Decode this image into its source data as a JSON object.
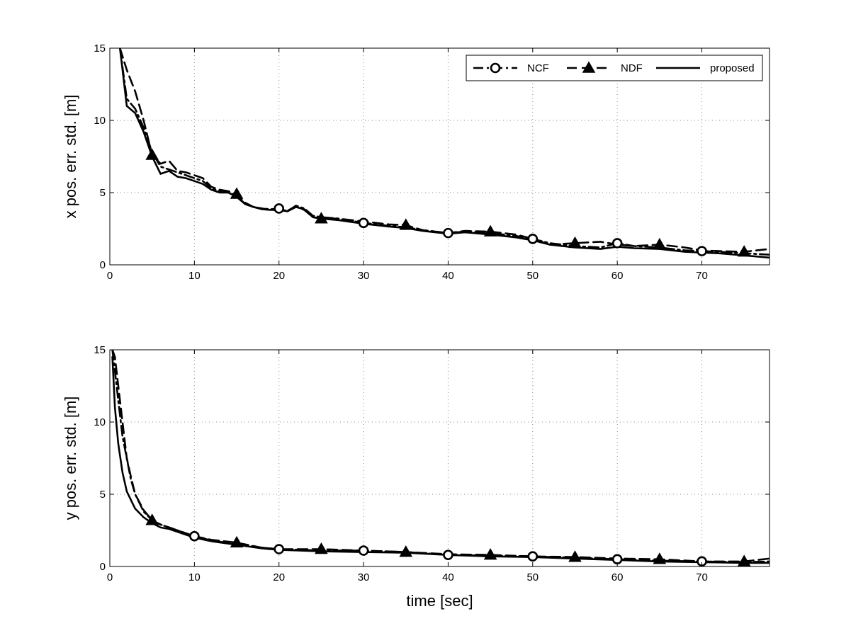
{
  "chart_data": [
    {
      "type": "line",
      "title": "",
      "xlabel": "",
      "ylabel": "x pos. err. std. [m]",
      "xlim": [
        0,
        78
      ],
      "ylim": [
        0,
        15
      ],
      "xticks": [
        0,
        10,
        20,
        30,
        40,
        50,
        60,
        70
      ],
      "yticks": [
        0,
        5,
        10,
        15
      ],
      "grid": true,
      "legend": "top-right",
      "series": [
        {
          "name": "NCF",
          "marker": "circle",
          "style": "dash-dot",
          "x": [
            1.2,
            2,
            3,
            4,
            5,
            6,
            7,
            8,
            9,
            10,
            11,
            12,
            13,
            14,
            15,
            16,
            17,
            18,
            19,
            20,
            21,
            22,
            23,
            24,
            25,
            27,
            30,
            33,
            35,
            37,
            40,
            42,
            45,
            48,
            50,
            52,
            55,
            58,
            60,
            62,
            65,
            68,
            70,
            72,
            75,
            78
          ],
          "y": [
            15,
            11.5,
            10.8,
            9.5,
            7.8,
            6.8,
            6.6,
            6.4,
            6.2,
            6.0,
            5.8,
            5.3,
            5.1,
            5.0,
            4.8,
            4.2,
            4.0,
            3.9,
            3.85,
            3.9,
            3.7,
            4.1,
            3.9,
            3.4,
            3.3,
            3.2,
            2.9,
            2.7,
            2.6,
            2.4,
            2.2,
            2.3,
            2.2,
            2.0,
            1.8,
            1.5,
            1.3,
            1.2,
            1.5,
            1.3,
            1.2,
            1.0,
            0.95,
            0.9,
            0.8,
            0.7
          ]
        },
        {
          "name": "NDF",
          "marker": "triangle",
          "style": "dashed",
          "x": [
            1.2,
            2,
            3,
            4,
            5,
            6,
            7,
            8,
            9,
            10,
            11,
            12,
            13,
            14,
            15,
            16,
            17,
            18,
            19,
            20,
            21,
            22,
            23,
            24,
            25,
            27,
            30,
            33,
            35,
            37,
            40,
            42,
            45,
            48,
            50,
            52,
            55,
            58,
            60,
            62,
            65,
            68,
            70,
            72,
            75,
            78
          ],
          "y": [
            15,
            13.5,
            12.0,
            10.0,
            7.6,
            7.0,
            7.2,
            6.5,
            6.4,
            6.2,
            6.0,
            5.4,
            5.2,
            5.1,
            4.9,
            4.3,
            4.0,
            3.9,
            3.8,
            3.8,
            3.75,
            4.05,
            3.8,
            3.3,
            3.2,
            3.2,
            3.0,
            2.8,
            2.75,
            2.4,
            2.2,
            2.35,
            2.3,
            2.1,
            1.8,
            1.4,
            1.5,
            1.6,
            1.4,
            1.3,
            1.4,
            1.2,
            1.0,
            0.95,
            0.9,
            1.1
          ]
        },
        {
          "name": "proposed",
          "marker": "none",
          "style": "solid",
          "x": [
            1.2,
            2,
            3,
            4,
            5,
            6,
            7,
            8,
            9,
            10,
            11,
            12,
            13,
            14,
            15,
            16,
            17,
            18,
            19,
            20,
            21,
            22,
            23,
            24,
            25,
            27,
            30,
            33,
            35,
            37,
            40,
            42,
            45,
            48,
            50,
            52,
            55,
            58,
            60,
            62,
            65,
            68,
            70,
            72,
            75,
            78
          ],
          "y": [
            15,
            11.0,
            10.5,
            9.2,
            7.5,
            6.3,
            6.5,
            6.1,
            6.0,
            5.8,
            5.6,
            5.2,
            5.0,
            5.0,
            4.7,
            4.2,
            4.0,
            3.85,
            3.8,
            3.8,
            3.7,
            4.0,
            3.85,
            3.3,
            3.2,
            3.1,
            2.85,
            2.65,
            2.55,
            2.35,
            2.15,
            2.25,
            2.1,
            1.9,
            1.7,
            1.4,
            1.2,
            1.1,
            1.25,
            1.15,
            1.1,
            0.9,
            0.85,
            0.8,
            0.65,
            0.5
          ]
        }
      ]
    },
    {
      "type": "line",
      "title": "",
      "xlabel": "time [sec]",
      "ylabel": "y pos. err. std. [m]",
      "xlim": [
        0,
        78
      ],
      "ylim": [
        0,
        15
      ],
      "xticks": [
        0,
        10,
        20,
        30,
        40,
        50,
        60,
        70
      ],
      "yticks": [
        0,
        5,
        10,
        15
      ],
      "grid": true,
      "legend": "none",
      "series": [
        {
          "name": "NCF",
          "marker": "circle",
          "style": "dash-dot",
          "x": [
            0.3,
            0.6,
            1,
            1.5,
            2,
            2.5,
            3,
            4,
            5,
            6,
            7,
            8,
            9,
            10,
            12,
            15,
            18,
            20,
            25,
            30,
            35,
            40,
            45,
            50,
            55,
            60,
            65,
            70,
            75,
            78
          ],
          "y": [
            15,
            13.5,
            11.5,
            9.0,
            7.5,
            6.0,
            5.0,
            3.8,
            3.2,
            2.9,
            2.7,
            2.5,
            2.3,
            2.1,
            1.8,
            1.55,
            1.3,
            1.2,
            1.1,
            1.1,
            1.0,
            0.8,
            0.75,
            0.7,
            0.6,
            0.5,
            0.4,
            0.35,
            0.3,
            0.35
          ]
        },
        {
          "name": "NDF",
          "marker": "triangle",
          "style": "dashed",
          "x": [
            0.3,
            0.6,
            1,
            1.5,
            2,
            2.5,
            3,
            4,
            5,
            6,
            7,
            8,
            9,
            10,
            12,
            15,
            18,
            20,
            25,
            30,
            35,
            40,
            45,
            50,
            55,
            60,
            65,
            70,
            75,
            78
          ],
          "y": [
            15,
            14.5,
            12.5,
            10.0,
            7.5,
            6.2,
            5.0,
            3.9,
            3.2,
            2.9,
            2.7,
            2.5,
            2.3,
            2.1,
            1.85,
            1.65,
            1.3,
            1.2,
            1.2,
            1.1,
            1.0,
            0.85,
            0.8,
            0.7,
            0.65,
            0.55,
            0.5,
            0.35,
            0.35,
            0.55
          ]
        },
        {
          "name": "proposed",
          "marker": "none",
          "style": "solid",
          "x": [
            0.3,
            0.6,
            1,
            1.5,
            2,
            2.5,
            3,
            4,
            5,
            6,
            7,
            8,
            9,
            10,
            12,
            15,
            18,
            20,
            25,
            30,
            35,
            40,
            45,
            50,
            55,
            60,
            65,
            70,
            75,
            78
          ],
          "y": [
            14.5,
            11.0,
            8.5,
            6.5,
            5.2,
            4.6,
            4.0,
            3.4,
            3.0,
            2.7,
            2.6,
            2.4,
            2.2,
            2.0,
            1.75,
            1.5,
            1.25,
            1.15,
            1.05,
            1.0,
            0.95,
            0.8,
            0.7,
            0.65,
            0.55,
            0.45,
            0.35,
            0.3,
            0.25,
            0.25
          ]
        }
      ]
    }
  ]
}
